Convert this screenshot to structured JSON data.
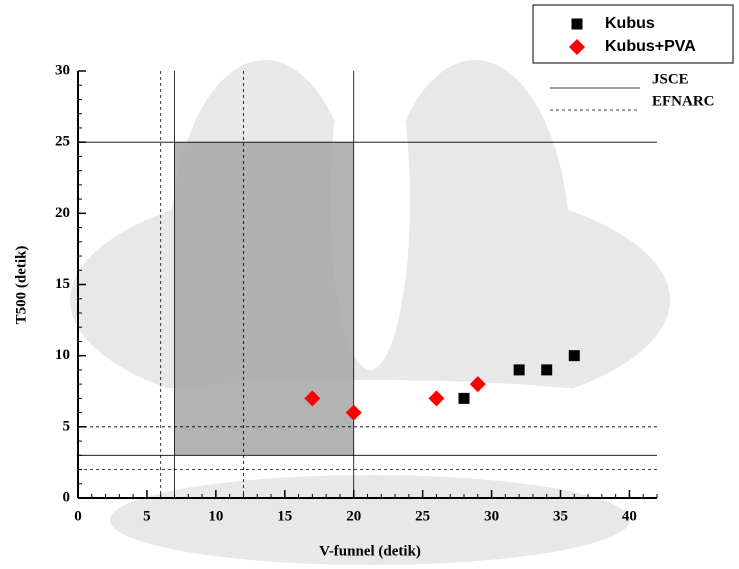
{
  "chart_data": {
    "type": "scatter",
    "xlabel": "V-funnel (detik)",
    "ylabel": "T500 (detik)",
    "xlim": [
      0,
      42
    ],
    "ylim": [
      0,
      30
    ],
    "xticks": [
      0,
      5,
      10,
      15,
      20,
      25,
      30,
      35,
      40
    ],
    "yticks": [
      0,
      5,
      10,
      15,
      20,
      25,
      30
    ],
    "x_minor_step": 1,
    "y_minor_step": 1,
    "series": [
      {
        "name": "Kubus",
        "color": "#000000",
        "marker": "square",
        "x": [
          28,
          32,
          34,
          36
        ],
        "values": [
          7,
          9,
          9,
          10
        ]
      },
      {
        "name": "Kubus+PVA",
        "color": "#ff0000",
        "marker": "diamond",
        "x": [
          17,
          20,
          26,
          29
        ],
        "values": [
          7,
          6,
          7,
          8
        ]
      }
    ],
    "reference_lines": [
      {
        "name": "JSCE",
        "style": "solid",
        "x": [
          7,
          20
        ],
        "y": [
          25,
          3
        ]
      },
      {
        "name": "EFNARC",
        "style": "dashed",
        "x": [
          6,
          12
        ],
        "y": [
          5,
          2
        ]
      }
    ],
    "shaded_region": {
      "x": [
        7,
        20
      ],
      "y": [
        3,
        25
      ],
      "color": "#a6a6a6"
    }
  }
}
